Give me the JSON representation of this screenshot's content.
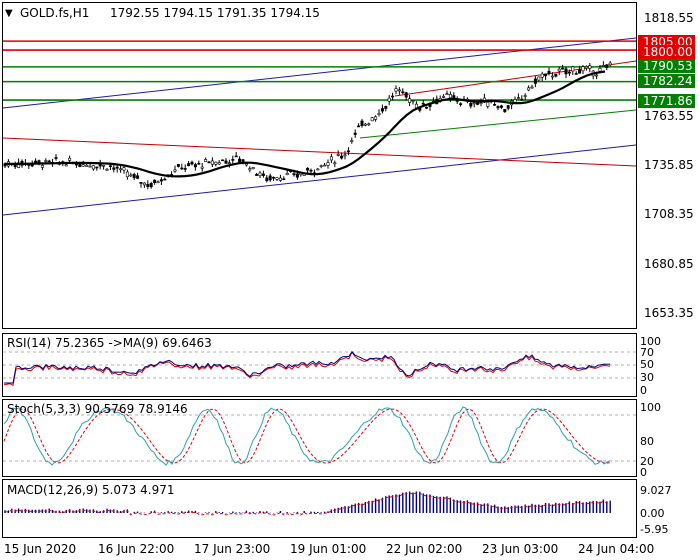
{
  "header": {
    "menu_icon": "triangle-down-icon",
    "symbol": "GOLD.fs,H1",
    "ohlc": "1792.55 1794.15 1791.35 1794.15"
  },
  "price_axis": {
    "ticks": [
      "1818.55",
      "1790.53",
      "1763.55",
      "1735.85",
      "1708.35",
      "1680.85",
      "1653.35"
    ],
    "levels": [
      {
        "label": "1805.00",
        "price": 1805.0,
        "color": "#e00000"
      },
      {
        "label": "1800.00",
        "price": 1800.0,
        "color": "#e00000"
      },
      {
        "label": "1790.53",
        "price": 1790.53,
        "color": "#008000"
      },
      {
        "label": "1782.24",
        "price": 1782.24,
        "color": "#008000"
      },
      {
        "label": "1771.86",
        "price": 1771.86,
        "color": "#008000"
      }
    ]
  },
  "rsi": {
    "label": "RSI(14) 75.2365  ->MA(9) 69.6463",
    "ticks": [
      "100",
      "70",
      "50",
      "30",
      "0"
    ]
  },
  "stoch": {
    "label": "Stoch(5,3,3) 90.5769 78.9146",
    "ticks": [
      "100",
      "80",
      "20",
      "0"
    ]
  },
  "macd": {
    "label": "MACD(12,26,9) 5.073 4.971",
    "ticks": [
      "9.027",
      "0.00",
      "-5.95"
    ]
  },
  "time_axis": {
    "labels": [
      "15 Jun 2020",
      "16 Jun 22:00",
      "17 Jun 23:00",
      "19 Jun 01:00",
      "22 Jun 02:00",
      "23 Jun 03:00",
      "24 Jun 04:00"
    ]
  },
  "colors": {
    "candle": "#000000",
    "ma": "#000000",
    "channel_blue": "#1a1aa8",
    "channel_red": "#c00000",
    "channel_green": "#008000",
    "level_red": "#e00000",
    "level_green": "#008000",
    "rsi_line": "#000080",
    "rsi_ma": "#e00000",
    "stoch_main": "#2aa0b0",
    "stoch_signal": "#e00000",
    "macd_hist": "#000080",
    "macd_signal": "#e00000"
  }
}
